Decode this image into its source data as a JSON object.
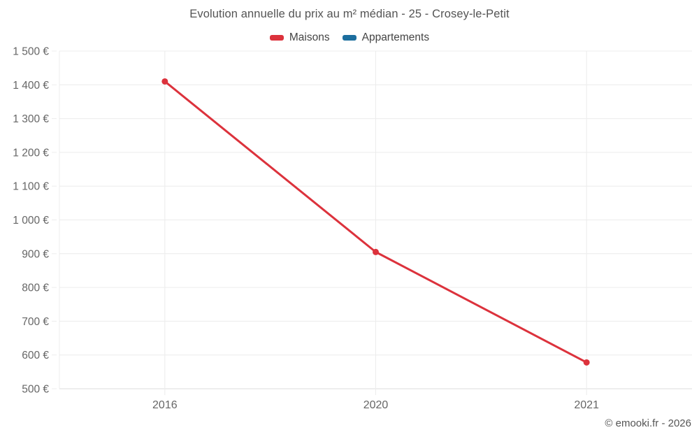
{
  "page": {
    "background": "#ffffff"
  },
  "footer": {
    "credit": "© emooki.fr - 2026"
  },
  "chart_data": {
    "type": "line",
    "title": "Evolution annuelle du prix au m² médian - 25 - Crosey-le-Petit",
    "categories": [
      "2016",
      "2020",
      "2021"
    ],
    "series": [
      {
        "name": "Maisons",
        "color": "#dc323c",
        "values": [
          1410,
          905,
          578
        ]
      },
      {
        "name": "Appartements",
        "color": "#1c6e9e",
        "values": []
      }
    ],
    "xlabel": "",
    "ylabel": "",
    "ylim": [
      500,
      1500
    ],
    "y_tick_step": 100,
    "y_tick_suffix": "€",
    "y_tick_thousands_separator": " ",
    "grid": true,
    "legend_position": "top",
    "grid_color": "#ececec",
    "axis_line_color": "#dddddd",
    "tick_label_color": "#666666"
  }
}
